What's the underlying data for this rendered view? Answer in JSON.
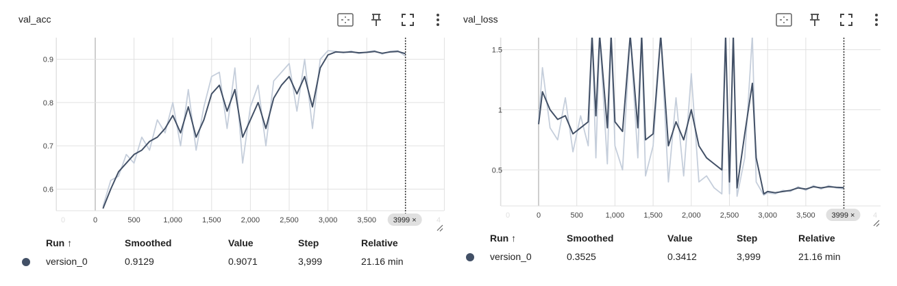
{
  "colors": {
    "smoothed_line": "#425066",
    "raw_line": "#c5cedb",
    "grid": "#e0e0e0",
    "axis": "#9e9e9e",
    "hover_line": "#333333",
    "chip_bg": "#e0e0e0"
  },
  "toolbar_icons": [
    "fit-domain-icon",
    "pin-icon",
    "fullscreen-icon",
    "more-vert-icon"
  ],
  "table_headers": {
    "run": "Run ↑",
    "smoothed": "Smoothed",
    "value": "Value",
    "step": "Step",
    "relative": "Relative"
  },
  "cards": [
    {
      "title": "val_acc",
      "row": {
        "run": "version_0",
        "smoothed": "0.9129",
        "value": "0.9071",
        "step": "3,999",
        "relative": "21.16 min"
      },
      "hover_chip": "3999 ×",
      "x_ticks": [
        "0",
        "500",
        "1,000",
        "1,500",
        "2,000",
        "2,500",
        "3,000",
        "3,500"
      ],
      "x_ghost_left": "0",
      "x_ghost_right": "4",
      "y_ticks": [
        "0.9",
        "0.8",
        "0.7",
        "0.6"
      ]
    },
    {
      "title": "val_loss",
      "row": {
        "run": "version_0",
        "smoothed": "0.3525",
        "value": "0.3412",
        "step": "3,999",
        "relative": "21.16 min"
      },
      "hover_chip": "3999 ×",
      "x_ticks": [
        "0",
        "500",
        "1,000",
        "1,500",
        "2,000",
        "2,500",
        "3,000",
        "3,500"
      ],
      "x_ghost_left": "0",
      "x_ghost_right": "4",
      "y_ticks": [
        "1.5",
        "1",
        "0.5"
      ]
    }
  ],
  "chart_data": [
    {
      "type": "line",
      "title": "val_acc",
      "xlabel": "",
      "ylabel": "",
      "xlim": [
        -500,
        4500
      ],
      "ylim": [
        0.55,
        0.95
      ],
      "x_ticks": [
        0,
        500,
        1000,
        1500,
        2000,
        2500,
        3000,
        3500
      ],
      "y_ticks": [
        0.6,
        0.7,
        0.8,
        0.9
      ],
      "grid": true,
      "hover_step": 3999,
      "series": [
        {
          "name": "version_0",
          "role": "smoothed",
          "x": [
            100,
            200,
            300,
            400,
            500,
            600,
            700,
            800,
            900,
            1000,
            1100,
            1200,
            1300,
            1400,
            1500,
            1600,
            1700,
            1800,
            1900,
            2000,
            2100,
            2200,
            2300,
            2400,
            2500,
            2600,
            2700,
            2800,
            2900,
            3000,
            3100,
            3200,
            3300,
            3400,
            3500,
            3600,
            3700,
            3800,
            3900,
            3999
          ],
          "y": [
            0.555,
            0.6,
            0.64,
            0.66,
            0.68,
            0.69,
            0.71,
            0.72,
            0.74,
            0.77,
            0.73,
            0.79,
            0.72,
            0.76,
            0.82,
            0.84,
            0.78,
            0.83,
            0.72,
            0.76,
            0.8,
            0.74,
            0.81,
            0.84,
            0.86,
            0.82,
            0.86,
            0.79,
            0.88,
            0.91,
            0.917,
            0.916,
            0.917,
            0.915,
            0.916,
            0.918,
            0.914,
            0.917,
            0.918,
            0.913
          ]
        },
        {
          "name": "version_0",
          "role": "raw",
          "x": [
            100,
            200,
            300,
            400,
            500,
            600,
            700,
            800,
            900,
            1000,
            1100,
            1200,
            1300,
            1400,
            1500,
            1600,
            1700,
            1800,
            1900,
            2000,
            2100,
            2200,
            2300,
            2400,
            2500,
            2600,
            2700,
            2800,
            2900,
            3000,
            3100,
            3200,
            3300,
            3400,
            3500,
            3600,
            3700,
            3800,
            3900,
            3999
          ],
          "y": [
            0.56,
            0.62,
            0.63,
            0.68,
            0.66,
            0.72,
            0.69,
            0.76,
            0.73,
            0.8,
            0.7,
            0.83,
            0.69,
            0.79,
            0.86,
            0.87,
            0.74,
            0.88,
            0.66,
            0.79,
            0.84,
            0.7,
            0.85,
            0.87,
            0.89,
            0.78,
            0.9,
            0.74,
            0.9,
            0.92,
            0.918,
            0.915,
            0.919,
            0.913,
            0.917,
            0.92,
            0.912,
            0.918,
            0.92,
            0.907
          ]
        }
      ]
    },
    {
      "type": "line",
      "title": "val_loss",
      "xlabel": "",
      "ylabel": "",
      "xlim": [
        -500,
        4500
      ],
      "ylim": [
        0.2,
        1.6
      ],
      "x_ticks": [
        0,
        500,
        1000,
        1500,
        2000,
        2500,
        3000,
        3500
      ],
      "y_ticks": [
        0.5,
        1,
        1.5
      ],
      "grid": true,
      "hover_step": 3999,
      "series": [
        {
          "name": "version_0",
          "role": "smoothed",
          "x": [
            0,
            50,
            150,
            250,
            350,
            450,
            550,
            650,
            700,
            750,
            800,
            900,
            950,
            1000,
            1100,
            1200,
            1300,
            1350,
            1400,
            1500,
            1600,
            1700,
            1800,
            1900,
            2000,
            2100,
            2200,
            2300,
            2400,
            2450,
            2500,
            2550,
            2600,
            2700,
            2800,
            2850,
            2950,
            3000,
            3100,
            3200,
            3300,
            3400,
            3500,
            3600,
            3700,
            3800,
            3900,
            3999
          ],
          "y": [
            0.88,
            1.15,
            1.0,
            0.92,
            0.95,
            0.8,
            0.85,
            0.9,
            1.62,
            0.95,
            1.62,
            0.85,
            1.62,
            0.9,
            0.82,
            1.62,
            0.85,
            1.62,
            0.75,
            0.8,
            1.62,
            0.7,
            0.9,
            0.75,
            1.0,
            0.7,
            0.6,
            0.55,
            0.5,
            1.62,
            0.4,
            1.62,
            0.35,
            0.8,
            1.22,
            0.6,
            0.3,
            0.32,
            0.31,
            0.32,
            0.33,
            0.35,
            0.34,
            0.36,
            0.35,
            0.36,
            0.355,
            0.3525
          ]
        },
        {
          "name": "version_0",
          "role": "raw",
          "x": [
            0,
            50,
            150,
            250,
            350,
            450,
            550,
            650,
            700,
            750,
            800,
            900,
            950,
            1000,
            1100,
            1200,
            1300,
            1350,
            1400,
            1500,
            1600,
            1700,
            1800,
            1900,
            2000,
            2100,
            2200,
            2300,
            2400,
            2450,
            2500,
            2550,
            2600,
            2700,
            2800,
            2850,
            2950,
            3000,
            3100,
            3200,
            3300,
            3400,
            3500,
            3600,
            3700,
            3800,
            3900,
            3999
          ],
          "y": [
            0.9,
            1.35,
            0.85,
            0.75,
            1.1,
            0.65,
            0.95,
            0.7,
            1.62,
            0.6,
            1.62,
            0.55,
            1.62,
            0.7,
            0.5,
            1.62,
            0.6,
            1.62,
            0.45,
            0.7,
            1.62,
            0.4,
            1.1,
            0.45,
            1.3,
            0.4,
            0.45,
            0.35,
            0.3,
            1.62,
            0.3,
            1.62,
            0.28,
            0.6,
            1.62,
            0.4,
            0.29,
            0.31,
            0.3,
            0.33,
            0.32,
            0.36,
            0.33,
            0.37,
            0.34,
            0.37,
            0.35,
            0.3412
          ]
        }
      ]
    }
  ]
}
